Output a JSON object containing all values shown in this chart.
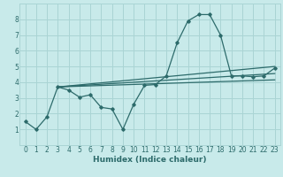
{
  "xlabel": "Humidex (Indice chaleur)",
  "background_color": "#c8eaea",
  "grid_color": "#aad4d4",
  "line_color": "#2d6b6b",
  "axis_color": "#2d6b6b",
  "xlim": [
    -0.5,
    23.5
  ],
  "ylim": [
    0,
    9
  ],
  "xticks": [
    0,
    1,
    2,
    3,
    4,
    5,
    6,
    7,
    8,
    9,
    10,
    11,
    12,
    13,
    14,
    15,
    16,
    17,
    18,
    19,
    20,
    21,
    22,
    23
  ],
  "yticks": [
    1,
    2,
    3,
    4,
    5,
    6,
    7,
    8
  ],
  "main_line": {
    "x": [
      0,
      1,
      2,
      3,
      4,
      5,
      6,
      7,
      8,
      9,
      10,
      11,
      12,
      13,
      14,
      15,
      16,
      17,
      18,
      19,
      20,
      21,
      22,
      23
    ],
    "y": [
      1.5,
      1.0,
      1.8,
      3.7,
      3.5,
      3.05,
      3.2,
      2.4,
      2.3,
      1.0,
      2.6,
      3.8,
      3.85,
      4.4,
      6.5,
      7.9,
      8.3,
      8.3,
      7.0,
      4.4,
      4.4,
      4.35,
      4.4,
      4.9
    ]
  },
  "trend_lines": [
    {
      "x": [
        3,
        23
      ],
      "y": [
        3.7,
        5.0
      ]
    },
    {
      "x": [
        3,
        23
      ],
      "y": [
        3.7,
        4.55
      ]
    },
    {
      "x": [
        3,
        23
      ],
      "y": [
        3.7,
        4.15
      ]
    }
  ]
}
